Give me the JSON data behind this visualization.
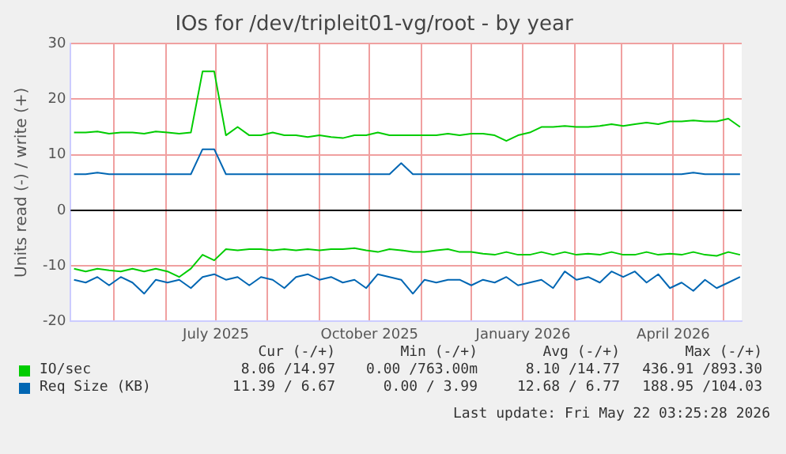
{
  "chart_data": {
    "type": "line",
    "title": "IOs for /dev/tripleit01-vg/root - by year",
    "ylabel": "Units read (-) / write (+)",
    "x": [
      "2025-04-07",
      "2025-04-14",
      "2025-04-21",
      "2025-04-28",
      "2025-05-05",
      "2025-05-12",
      "2025-05-19",
      "2025-05-26",
      "2025-06-02",
      "2025-06-09",
      "2025-06-16",
      "2025-06-23",
      "2025-06-30",
      "2025-07-07",
      "2025-07-14",
      "2025-07-21",
      "2025-07-28",
      "2025-08-04",
      "2025-08-11",
      "2025-08-18",
      "2025-08-25",
      "2025-09-01",
      "2025-09-08",
      "2025-09-15",
      "2025-09-22",
      "2025-09-29",
      "2025-10-06",
      "2025-10-13",
      "2025-10-20",
      "2025-10-27",
      "2025-11-03",
      "2025-11-10",
      "2025-11-17",
      "2025-11-24",
      "2025-12-01",
      "2025-12-08",
      "2025-12-15",
      "2025-12-22",
      "2025-12-29",
      "2026-01-05",
      "2026-01-12",
      "2026-01-19",
      "2026-01-26",
      "2026-02-02",
      "2026-02-09",
      "2026-02-16",
      "2026-02-23",
      "2026-03-02",
      "2026-03-09",
      "2026-03-16",
      "2026-03-23",
      "2026-03-30",
      "2026-04-06",
      "2026-04-13",
      "2026-04-20",
      "2026-04-27",
      "2026-05-04",
      "2026-05-11"
    ],
    "series": [
      {
        "name": "IO/sec",
        "color": "#00cc00",
        "values": [
          14,
          14,
          14.2,
          13.8,
          14,
          14,
          13.8,
          14.2,
          14,
          13.8,
          14,
          25,
          25,
          13.5,
          15,
          13.5,
          13.5,
          14,
          13.5,
          13.5,
          13.2,
          13.5,
          13.2,
          13,
          13.5,
          13.5,
          14,
          13.5,
          13.5,
          13.5,
          13.5,
          13.5,
          13.8,
          13.5,
          13.8,
          13.8,
          13.5,
          12.5,
          13.5,
          14,
          15,
          15,
          15.2,
          15,
          15,
          15.2,
          15.5,
          15.2,
          15.5,
          15.8,
          15.5,
          16,
          16,
          16.2,
          16,
          16,
          16.5,
          15
        ]
      },
      {
        "name": "Req Size (KB)",
        "color": "#0066b3",
        "values": [
          6.5,
          6.5,
          6.8,
          6.5,
          6.5,
          6.5,
          6.5,
          6.5,
          6.5,
          6.5,
          6.5,
          11,
          11,
          6.5,
          6.5,
          6.5,
          6.5,
          6.5,
          6.5,
          6.5,
          6.5,
          6.5,
          6.5,
          6.5,
          6.5,
          6.5,
          6.5,
          6.5,
          8.5,
          6.5,
          6.5,
          6.5,
          6.5,
          6.5,
          6.5,
          6.5,
          6.5,
          6.5,
          6.5,
          6.5,
          6.5,
          6.5,
          6.5,
          6.5,
          6.5,
          6.5,
          6.5,
          6.5,
          6.5,
          6.5,
          6.5,
          6.5,
          6.5,
          6.8,
          6.5,
          6.5,
          6.5,
          6.5
        ]
      },
      {
        "color": "#00cc00",
        "values": [
          -10.5,
          -11,
          -10.5,
          -10.8,
          -11,
          -10.5,
          -11,
          -10.5,
          -11,
          -12,
          -10.5,
          -8,
          -9,
          -7,
          -7.2,
          -7,
          -7,
          -7.2,
          -7,
          -7.2,
          -7,
          -7.2,
          -7,
          -7,
          -6.8,
          -7.2,
          -7.5,
          -7,
          -7.2,
          -7.5,
          -7.5,
          -7.2,
          -7,
          -7.5,
          -7.5,
          -7.8,
          -8,
          -7.5,
          -8,
          -8,
          -7.5,
          -8,
          -7.5,
          -8,
          -7.8,
          -8,
          -7.5,
          -8,
          -8,
          -7.5,
          -8,
          -7.8,
          -8,
          -7.5,
          -8,
          -8.2,
          -7.5,
          -8
        ]
      },
      {
        "color": "#0066b3",
        "values": [
          -12.5,
          -13,
          -12,
          -13.5,
          -12,
          -13,
          -15,
          -12.5,
          -13,
          -12.5,
          -14,
          -12,
          -11.5,
          -12.5,
          -12,
          -13.5,
          -12,
          -12.5,
          -14,
          -12,
          -11.5,
          -12.5,
          -12,
          -13,
          -12.5,
          -14,
          -11.5,
          -12,
          -12.5,
          -15,
          -12.5,
          -13,
          -12.5,
          -12.5,
          -13.5,
          -12.5,
          -13,
          -12,
          -13.5,
          -13,
          -12.5,
          -14,
          -11,
          -12.5,
          -12,
          -13,
          -11,
          -12,
          -11,
          -13,
          -11.5,
          -14,
          -13,
          -14.5,
          -12.5,
          -14,
          -13,
          -12
        ]
      }
    ],
    "xlim": [
      "2025-04-05",
      "2026-05-12"
    ],
    "xticks": [
      {
        "value": "2025-05-01",
        "label": null
      },
      {
        "value": "2025-06-01",
        "label": null
      },
      {
        "value": "2025-07-01",
        "label": "July 2025"
      },
      {
        "value": "2025-08-01",
        "label": null
      },
      {
        "value": "2025-09-01",
        "label": null
      },
      {
        "value": "2025-10-01",
        "label": "October 2025"
      },
      {
        "value": "2025-11-01",
        "label": null
      },
      {
        "value": "2025-12-01",
        "label": null
      },
      {
        "value": "2026-01-01",
        "label": "January 2026"
      },
      {
        "value": "2026-02-01",
        "label": null
      },
      {
        "value": "2026-03-01",
        "label": null
      },
      {
        "value": "2026-04-01",
        "label": "April 2026"
      },
      {
        "value": "2026-05-01",
        "label": null
      }
    ],
    "ylim": [
      -20,
      30
    ],
    "yticks": [
      -20,
      -10,
      0,
      10,
      20,
      30
    ],
    "ref_lines": [
      {
        "axis": "y",
        "value": 0,
        "color": "#000000"
      }
    ],
    "grid": true,
    "legend": "bottom",
    "marker": "none",
    "line_style": "solid",
    "annotations": [
      "Cur (-/+)",
      "Min (-/+)",
      "Avg (-/+)",
      "Max (-/+)",
      "8.06 /14.97",
      "0.00 /763.00m",
      "8.10 /14.77",
      "436.91 /893.30",
      "11.39 / 6.67",
      "0.00 / 3.99",
      "12.68 / 6.77",
      "188.95 /104.03",
      "Last update: Fri May 22 03:25:28 2026"
    ]
  }
}
